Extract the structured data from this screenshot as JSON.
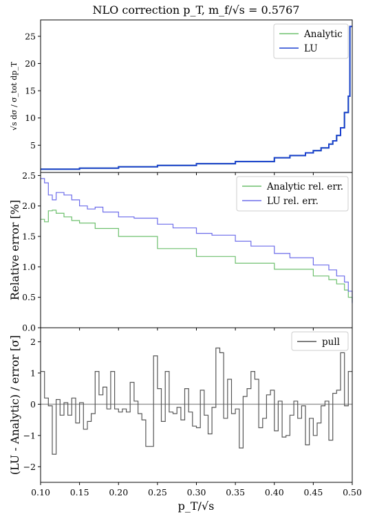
{
  "chart_data": {
    "type": "line",
    "title": "NLO correction p_T, m_f/√s = 0.5767",
    "xlabel": "p_T/√s",
    "x_ticks": [
      "0.10",
      "0.15",
      "0.20",
      "0.25",
      "0.30",
      "0.35",
      "0.40",
      "0.45",
      "0.50"
    ],
    "xlim": [
      0.1,
      0.5
    ],
    "panels": [
      {
        "id": "top",
        "ylabel": "√s dσ / σ_tot dp_T",
        "ylim": [
          0,
          28
        ],
        "y_ticks": [
          "5",
          "10",
          "15",
          "20",
          "25"
        ],
        "legend_position": "top-right",
        "series": [
          {
            "name": "Analytic",
            "color": "#6cbf6c",
            "x": [
              0.1,
              0.15,
              0.2,
              0.25,
              0.3,
              0.35,
              0.4,
              0.42,
              0.44,
              0.45,
              0.46,
              0.47,
              0.475,
              0.48,
              0.485,
              0.49,
              0.495,
              0.497,
              0.5
            ],
            "y": [
              0.6,
              0.8,
              1.05,
              1.3,
              1.6,
              2.0,
              2.7,
              3.1,
              3.6,
              4.0,
              4.5,
              5.2,
              5.8,
              6.8,
              8.2,
              11.0,
              14.0,
              26.8,
              26.8
            ]
          },
          {
            "name": "LU",
            "color": "#1a3fcf",
            "x": [
              0.1,
              0.15,
              0.2,
              0.25,
              0.3,
              0.35,
              0.4,
              0.42,
              0.44,
              0.45,
              0.46,
              0.47,
              0.475,
              0.48,
              0.485,
              0.49,
              0.495,
              0.497,
              0.5
            ],
            "y": [
              0.6,
              0.8,
              1.05,
              1.3,
              1.6,
              2.0,
              2.7,
              3.1,
              3.6,
              4.0,
              4.5,
              5.2,
              5.8,
              6.8,
              8.2,
              11.0,
              14.0,
              26.8,
              26.8
            ]
          }
        ]
      },
      {
        "id": "middle",
        "ylabel": "Relative error [%]",
        "ylim": [
          0,
          2.55
        ],
        "y_ticks": [
          "0.0",
          "0.5",
          "1.0",
          "1.5",
          "2.0",
          "2.5"
        ],
        "legend_position": "top-right",
        "series": [
          {
            "name": "Analytic rel. err.",
            "color": "#6cbf6c",
            "x": [
              0.1,
              0.105,
              0.11,
              0.115,
              0.12,
              0.13,
              0.14,
              0.15,
              0.17,
              0.2,
              0.25,
              0.3,
              0.35,
              0.4,
              0.45,
              0.47,
              0.48,
              0.49,
              0.495,
              0.5
            ],
            "y": [
              1.78,
              1.74,
              1.92,
              1.93,
              1.88,
              1.82,
              1.76,
              1.72,
              1.63,
              1.5,
              1.3,
              1.17,
              1.06,
              0.96,
              0.85,
              0.79,
              0.72,
              0.62,
              0.5,
              0.42
            ]
          },
          {
            "name": "LU rel. err.",
            "color": "#6b6bea",
            "x": [
              0.1,
              0.105,
              0.11,
              0.115,
              0.12,
              0.13,
              0.14,
              0.15,
              0.16,
              0.17,
              0.18,
              0.2,
              0.22,
              0.25,
              0.27,
              0.3,
              0.32,
              0.35,
              0.37,
              0.4,
              0.42,
              0.45,
              0.47,
              0.48,
              0.49,
              0.495,
              0.5
            ],
            "y": [
              2.45,
              2.38,
              2.18,
              2.1,
              2.22,
              2.18,
              2.1,
              2.0,
              1.95,
              1.98,
              1.9,
              1.82,
              1.8,
              1.7,
              1.64,
              1.55,
              1.52,
              1.42,
              1.34,
              1.22,
              1.15,
              1.03,
              0.95,
              0.85,
              0.75,
              0.6,
              0.4
            ]
          }
        ]
      },
      {
        "id": "bottom",
        "ylabel": "(LU - Analytic) / error [σ]",
        "ylim": [
          -2.5,
          2.45
        ],
        "y_ticks": [
          "−2",
          "−1",
          "0",
          "1",
          "2"
        ],
        "legend_position": "top-right",
        "series": [
          {
            "name": "pull",
            "color": "#555555",
            "x": [
              0.1,
              0.105,
              0.11,
              0.115,
              0.12,
              0.125,
              0.13,
              0.135,
              0.14,
              0.145,
              0.15,
              0.155,
              0.16,
              0.165,
              0.17,
              0.175,
              0.18,
              0.185,
              0.19,
              0.195,
              0.2,
              0.205,
              0.21,
              0.215,
              0.22,
              0.225,
              0.23,
              0.235,
              0.24,
              0.245,
              0.25,
              0.255,
              0.26,
              0.265,
              0.27,
              0.275,
              0.28,
              0.285,
              0.29,
              0.295,
              0.3,
              0.305,
              0.31,
              0.315,
              0.32,
              0.325,
              0.33,
              0.335,
              0.34,
              0.345,
              0.35,
              0.355,
              0.36,
              0.365,
              0.37,
              0.375,
              0.38,
              0.385,
              0.39,
              0.395,
              0.4,
              0.405,
              0.41,
              0.415,
              0.42,
              0.425,
              0.43,
              0.435,
              0.44,
              0.445,
              0.45,
              0.455,
              0.46,
              0.465,
              0.47,
              0.475,
              0.48,
              0.485,
              0.49,
              0.495
            ],
            "y": [
              1.05,
              0.2,
              -0.05,
              -1.6,
              0.15,
              -0.35,
              0.05,
              -0.35,
              0.2,
              -0.6,
              0.05,
              -0.8,
              -0.55,
              -0.3,
              1.05,
              0.3,
              0.55,
              -0.15,
              1.05,
              -0.15,
              -0.25,
              -0.15,
              -0.25,
              0.7,
              0.1,
              -0.3,
              -0.5,
              -1.35,
              -1.35,
              1.55,
              0.5,
              -0.55,
              1.05,
              -0.25,
              -0.3,
              -0.1,
              -0.5,
              0.5,
              -0.25,
              -0.7,
              -0.75,
              0.45,
              -0.35,
              -0.95,
              -0.1,
              1.8,
              1.65,
              -0.45,
              0.8,
              -0.3,
              -0.15,
              -1.4,
              0.25,
              0.5,
              1.05,
              0.8,
              -0.75,
              -0.45,
              0.3,
              0.45,
              -0.85,
              0.1,
              -1.05,
              -1.0,
              -0.35,
              0.1,
              -0.45,
              -0.05,
              -1.3,
              -0.45,
              -1.0,
              -0.6,
              -0.05,
              0.1,
              -1.15,
              0.35,
              0.45,
              1.65,
              -0.05,
              1.05
            ]
          }
        ]
      }
    ]
  }
}
